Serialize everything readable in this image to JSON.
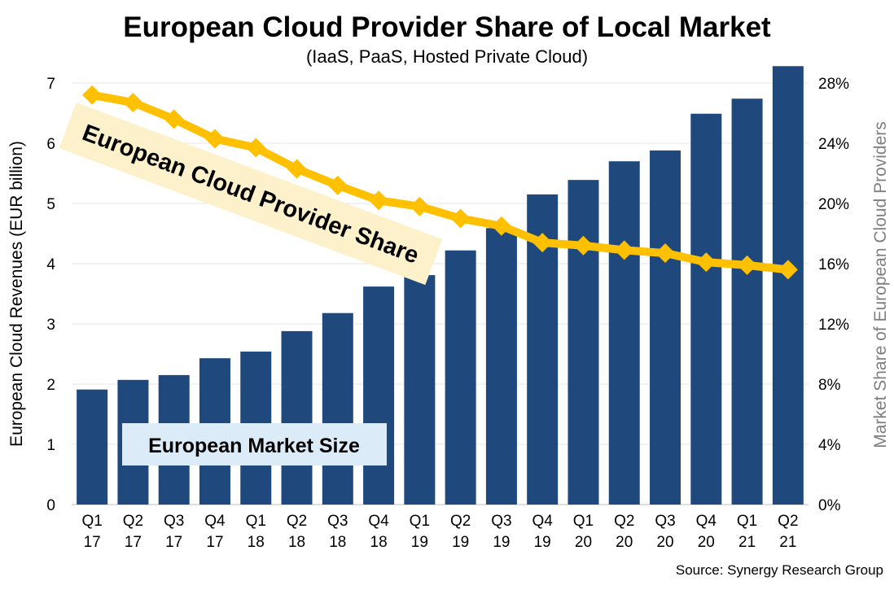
{
  "chart_data": {
    "type": "bar+line",
    "title": "European Cloud Provider Share of Local Market",
    "subtitle": "(IaaS, PaaS, Hosted Private Cloud)",
    "ylabel": "European Cloud Revenues (EUR billion)",
    "y2label": "Market Share of European Cloud Providers",
    "source": "Source: Synergy Research Group",
    "categories": [
      [
        "Q1",
        "17"
      ],
      [
        "Q2",
        "17"
      ],
      [
        "Q3",
        "17"
      ],
      [
        "Q4",
        "17"
      ],
      [
        "Q1",
        "18"
      ],
      [
        "Q2",
        "18"
      ],
      [
        "Q3",
        "18"
      ],
      [
        "Q4",
        "18"
      ],
      [
        "Q1",
        "19"
      ],
      [
        "Q2",
        "19"
      ],
      [
        "Q3",
        "19"
      ],
      [
        "Q4",
        "19"
      ],
      [
        "Q1",
        "20"
      ],
      [
        "Q2",
        "20"
      ],
      [
        "Q3",
        "20"
      ],
      [
        "Q4",
        "20"
      ],
      [
        "Q1",
        "21"
      ],
      [
        "Q2",
        "21"
      ]
    ],
    "ylim": [
      0,
      7
    ],
    "yticks": [
      0,
      1,
      2,
      3,
      4,
      5,
      6,
      7
    ],
    "y2lim": [
      0,
      28
    ],
    "y2ticks": [
      "0%",
      "4%",
      "8%",
      "12%",
      "16%",
      "20%",
      "24%",
      "28%"
    ],
    "grid": true,
    "series": [
      {
        "name": "European Market Size",
        "type": "bar",
        "axis": "left",
        "color": "#1f497d",
        "values": [
          1.91,
          2.07,
          2.15,
          2.43,
          2.54,
          2.88,
          3.18,
          3.62,
          3.81,
          4.22,
          4.59,
          5.15,
          5.39,
          5.7,
          5.88,
          6.49,
          6.74,
          7.28
        ]
      },
      {
        "name": "European Cloud Provider Share",
        "type": "line",
        "axis": "right",
        "color": "#ffc000",
        "values": [
          27.2,
          26.7,
          25.6,
          24.3,
          23.7,
          22.3,
          21.2,
          20.2,
          19.8,
          19.0,
          18.5,
          17.4,
          17.2,
          16.9,
          16.7,
          16.1,
          15.9,
          15.6
        ]
      }
    ],
    "annotations": {
      "share_label": "European Cloud Provider Share",
      "share_label_bg": "#fdf1cc",
      "market_label": "European Market Size",
      "market_label_bg": "#dcebf8"
    }
  }
}
